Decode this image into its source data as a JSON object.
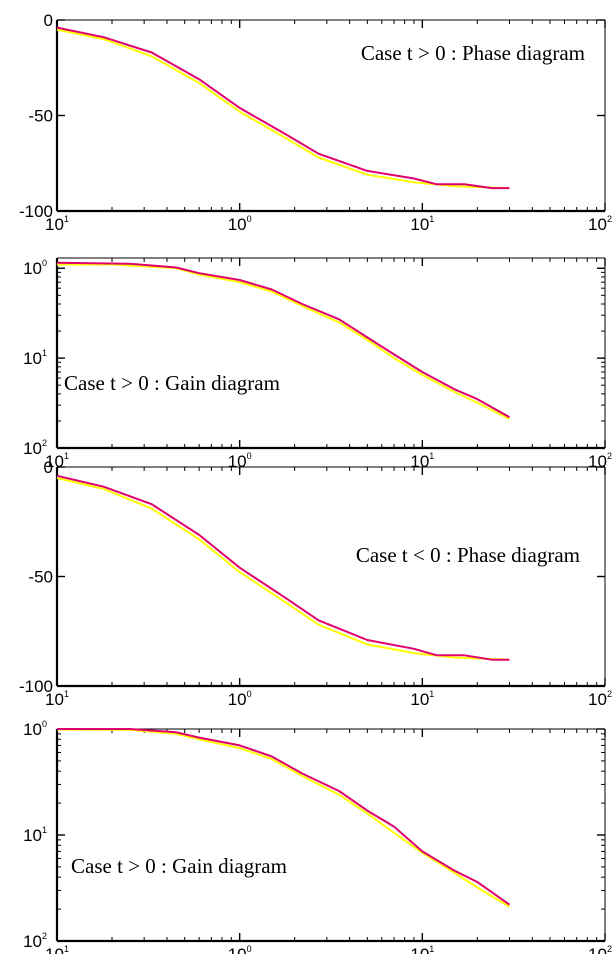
{
  "chart_data": [
    {
      "type": "line",
      "annotation": "Case t > 0 : Phase diagram",
      "xscale": "log",
      "yscale": "linear",
      "xlim": [
        0.1,
        100
      ],
      "ylim": [
        -100,
        0
      ],
      "x_ticks": [
        {
          "base": "10",
          "exp": "1"
        },
        {
          "base": "10",
          "exp": "0"
        },
        {
          "base": "10",
          "exp": "1"
        },
        {
          "base": "10",
          "exp": "2"
        }
      ],
      "y_ticks": [
        {
          "value": 0,
          "label": "0"
        },
        {
          "value": -50,
          "label": "-50"
        },
        {
          "value": -100,
          "label": "-100"
        }
      ],
      "series": [
        {
          "color": "#ffff00",
          "x": [
            0.1,
            0.18,
            0.33,
            0.6,
            1,
            1.8,
            2.7,
            5,
            9,
            15,
            30
          ],
          "y": [
            -5,
            -10,
            -19,
            -33,
            -48,
            -62,
            -72,
            -81,
            -85,
            -87,
            -88
          ]
        },
        {
          "color": "#e0006e",
          "x": [
            0.1,
            0.18,
            0.33,
            0.6,
            1,
            1.8,
            2.7,
            5,
            9,
            12,
            17,
            24,
            30
          ],
          "y": [
            -4,
            -9,
            -17,
            -31,
            -46,
            -60,
            -70,
            -79,
            -83,
            -86,
            -86,
            -88,
            -88
          ]
        }
      ]
    },
    {
      "type": "line",
      "annotation": "Case t > 0 : Gain diagram",
      "xscale": "log",
      "yscale": "log",
      "xlim": [
        0.1,
        100
      ],
      "ylim": [
        0.01,
        1.3
      ],
      "x_ticks": [
        {
          "base": "10",
          "exp": "1"
        },
        {
          "base": "10",
          "exp": "0"
        },
        {
          "base": "10",
          "exp": "1"
        },
        {
          "base": "10",
          "exp": "2"
        }
      ],
      "y_ticks": [
        {
          "value": 1,
          "base": "10",
          "exp": "0"
        },
        {
          "value": 0.1,
          "base": "10",
          "exp": "1"
        },
        {
          "value": 0.01,
          "base": "10",
          "exp": "2"
        }
      ],
      "series": [
        {
          "color": "#ffff00",
          "x": [
            0.1,
            0.2,
            0.45,
            0.6,
            1,
            1.5,
            2.2,
            3.5,
            5,
            7,
            10,
            15,
            20,
            30
          ],
          "y": [
            1.1,
            1.1,
            1.0,
            0.85,
            0.7,
            0.55,
            0.38,
            0.25,
            0.16,
            0.1,
            0.065,
            0.042,
            0.032,
            0.021
          ]
        },
        {
          "color": "#e0006e",
          "x": [
            0.1,
            0.25,
            0.45,
            0.6,
            1,
            1.5,
            2.2,
            3.5,
            5,
            7,
            10,
            15,
            20,
            30
          ],
          "y": [
            1.15,
            1.12,
            1.02,
            0.88,
            0.74,
            0.58,
            0.4,
            0.27,
            0.17,
            0.11,
            0.07,
            0.045,
            0.035,
            0.022
          ]
        }
      ]
    },
    {
      "type": "line",
      "annotation": "Case t < 0 : Phase diagram",
      "xscale": "log",
      "yscale": "linear",
      "xlim": [
        0.1,
        100
      ],
      "ylim": [
        -100,
        0
      ],
      "x_ticks": [
        {
          "base": "10",
          "exp": "1"
        },
        {
          "base": "10",
          "exp": "0"
        },
        {
          "base": "10",
          "exp": "1"
        },
        {
          "base": "10",
          "exp": "2"
        }
      ],
      "y_ticks": [
        {
          "value": 0,
          "label": "0"
        },
        {
          "value": -50,
          "label": "-50"
        },
        {
          "value": -100,
          "label": "-100"
        }
      ],
      "series": [
        {
          "color": "#ffff00",
          "x": [
            0.1,
            0.18,
            0.33,
            0.6,
            1,
            1.8,
            2.7,
            5,
            9,
            15,
            30
          ],
          "y": [
            -5,
            -10,
            -19,
            -33,
            -48,
            -62,
            -72,
            -81,
            -85,
            -87,
            -88
          ]
        },
        {
          "color": "#e0006e",
          "x": [
            0.1,
            0.18,
            0.33,
            0.6,
            1,
            1.8,
            2.7,
            5,
            9,
            12,
            17,
            24,
            30
          ],
          "y": [
            -4,
            -9,
            -17,
            -31,
            -46,
            -60,
            -70,
            -79,
            -83,
            -86,
            -86,
            -88,
            -88
          ]
        }
      ]
    },
    {
      "type": "line",
      "annotation": "Case t > 0 : Gain diagram",
      "xscale": "log",
      "yscale": "log",
      "xlim": [
        0.1,
        100
      ],
      "ylim": [
        0.01,
        1.0
      ],
      "x_ticks": [
        {
          "base": "10",
          "exp": "1"
        },
        {
          "base": "10",
          "exp": "0"
        },
        {
          "base": "10",
          "exp": "1"
        },
        {
          "base": "10",
          "exp": "2"
        }
      ],
      "y_ticks": [
        {
          "value": 1,
          "base": "10",
          "exp": "0"
        },
        {
          "value": 0.1,
          "base": "10",
          "exp": "1"
        },
        {
          "value": 0.01,
          "base": "10",
          "exp": "2"
        }
      ],
      "series": [
        {
          "color": "#ffff00",
          "x": [
            0.1,
            0.25,
            0.45,
            0.6,
            1,
            1.5,
            2.2,
            3.5,
            5,
            7,
            10,
            15,
            20,
            30
          ],
          "y": [
            0.99,
            0.98,
            0.9,
            0.8,
            0.66,
            0.52,
            0.36,
            0.24,
            0.16,
            0.105,
            0.068,
            0.044,
            0.032,
            0.021
          ]
        },
        {
          "color": "#e0006e",
          "x": [
            0.1,
            0.25,
            0.45,
            0.6,
            1,
            1.5,
            2.2,
            3.5,
            5,
            7,
            10,
            15,
            20,
            30
          ],
          "y": [
            1.0,
            1.0,
            0.93,
            0.83,
            0.7,
            0.55,
            0.38,
            0.26,
            0.17,
            0.12,
            0.07,
            0.046,
            0.036,
            0.022
          ]
        }
      ]
    }
  ]
}
